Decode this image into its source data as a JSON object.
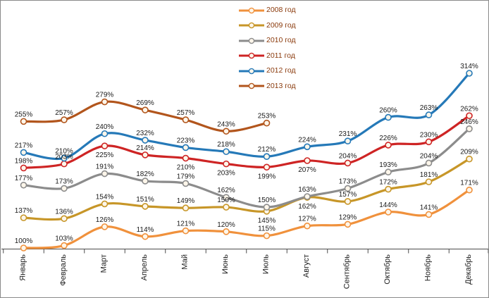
{
  "chart_data": {
    "type": "line",
    "title": "",
    "xlabel": "",
    "ylabel": "",
    "value_suffix": "%",
    "categories": [
      "Январь",
      "Февраль",
      "Март",
      "Апрель",
      "Май",
      "Июнь",
      "Июль",
      "Август",
      "Сентябрь",
      "Октябрь",
      "Ноябрь",
      "Декабрь"
    ],
    "series": [
      {
        "name": "2008 год",
        "color": "#F0913C",
        "values": [
          100,
          103,
          126,
          114,
          121,
          120,
          115,
          127,
          129,
          144,
          141,
          171
        ],
        "labels_below": []
      },
      {
        "name": "2009 год",
        "color": "#C79628",
        "values": [
          137,
          136,
          154,
          151,
          149,
          150,
          145,
          162,
          157,
          172,
          181,
          209
        ],
        "labels_below": [
          6,
          7
        ]
      },
      {
        "name": "2010 год",
        "color": "#8C8C8C",
        "values": [
          177,
          173,
          191,
          182,
          179,
          162,
          150,
          163,
          173,
          193,
          204,
          246
        ],
        "labels_below": []
      },
      {
        "name": "2011 год",
        "color": "#CE2424",
        "values": [
          198,
          203,
          225,
          214,
          210,
          203,
          199,
          207,
          204,
          226,
          230,
          262
        ],
        "labels_below": [
          2,
          4,
          5,
          6,
          7
        ]
      },
      {
        "name": "2012 год",
        "color": "#2579B8",
        "values": [
          217,
          210,
          240,
          232,
          223,
          218,
          212,
          224,
          231,
          260,
          263,
          314
        ],
        "labels_below": []
      },
      {
        "name": "2013 год",
        "color": "#B2551C",
        "values": [
          255,
          257,
          279,
          269,
          257,
          243,
          253,
          null,
          null,
          null,
          null,
          null
        ],
        "labels_below": []
      }
    ],
    "ylim": [
      90,
      330
    ],
    "grid": false,
    "legend_position": "top-center",
    "line_style": "smoothed",
    "marker_fill": "#FDF6EA",
    "data_labels_shown": true
  }
}
